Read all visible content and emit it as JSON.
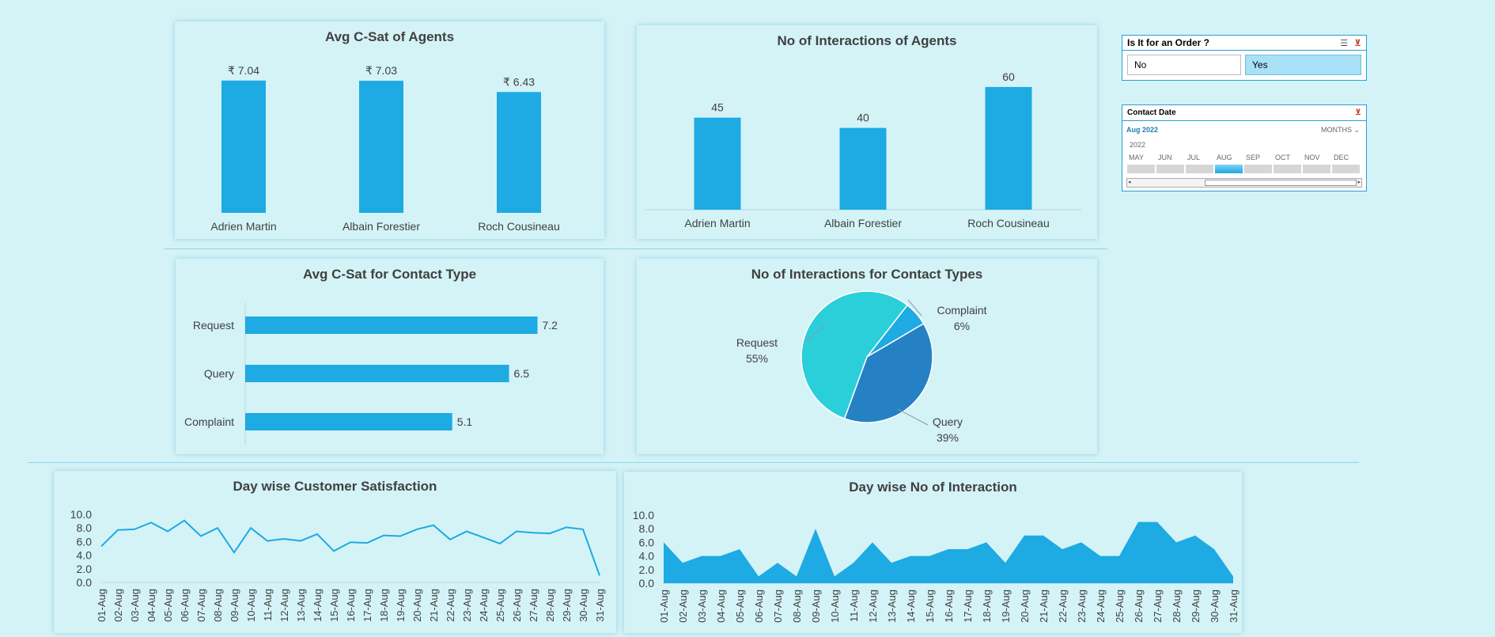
{
  "slicers": {
    "order": {
      "title": "Is It for an Order ?",
      "options": [
        {
          "label": "No",
          "selected": false
        },
        {
          "label": "Yes",
          "selected": true
        }
      ]
    },
    "contact_date": {
      "title": "Contact Date",
      "selection": "Aug 2022",
      "granularity": "MONTHS",
      "year": "2022",
      "months": [
        "MAY",
        "JUN",
        "JUL",
        "AUG",
        "SEP",
        "OCT",
        "NOV",
        "DEC"
      ],
      "selected_month": "AUG"
    }
  },
  "chart_data": [
    {
      "id": "csat-agents",
      "type": "bar",
      "title": "Avg C-Sat of Agents",
      "categories": [
        "Adrien Martin",
        "Albain Forestier",
        "Roch Cousineau"
      ],
      "values": [
        7.04,
        7.03,
        6.43
      ],
      "data_labels": [
        "₹ 7.04",
        "₹ 7.03",
        "₹ 6.43"
      ],
      "ylim": [
        0,
        8
      ],
      "color": "#1eaae2"
    },
    {
      "id": "interactions-agents",
      "type": "bar",
      "title": "No of Interactions of Agents",
      "categories": [
        "Adrien Martin",
        "Albain Forestier",
        "Roch Cousineau"
      ],
      "values": [
        45,
        40,
        60
      ],
      "data_labels": [
        "45",
        "40",
        "60"
      ],
      "ylim": [
        0,
        65
      ],
      "color": "#1eaae2"
    },
    {
      "id": "csat-contact",
      "type": "bar",
      "orientation": "horizontal",
      "title": "Avg C-Sat for Contact Type",
      "categories": [
        "Request",
        "Query",
        "Complaint"
      ],
      "values": [
        7.2,
        6.5,
        5.1
      ],
      "data_labels": [
        "7.2",
        "6.5",
        "5.1"
      ],
      "xlim": [
        0,
        7.6
      ],
      "color": "#1eaae2"
    },
    {
      "id": "interactions-contact",
      "type": "pie",
      "title": "No of Interactions for Contact Types",
      "categories": [
        "Complaint",
        "Query",
        "Request"
      ],
      "values": [
        6,
        39,
        55
      ],
      "data_labels": [
        "6%",
        "39%",
        "55%"
      ],
      "colors": [
        "#1eaae2",
        "#2581c4",
        "#2acfd9"
      ]
    },
    {
      "id": "day-csat",
      "type": "line",
      "title": "Day wise Customer Satisfaction",
      "x": [
        "01-Aug",
        "02-Aug",
        "03-Aug",
        "04-Aug",
        "05-Aug",
        "06-Aug",
        "07-Aug",
        "08-Aug",
        "09-Aug",
        "10-Aug",
        "11-Aug",
        "12-Aug",
        "13-Aug",
        "14-Aug",
        "15-Aug",
        "16-Aug",
        "17-Aug",
        "18-Aug",
        "19-Aug",
        "20-Aug",
        "21-Aug",
        "22-Aug",
        "23-Aug",
        "24-Aug",
        "25-Aug",
        "26-Aug",
        "27-Aug",
        "28-Aug",
        "29-Aug",
        "30-Aug",
        "31-Aug"
      ],
      "values": [
        5.3,
        7.7,
        7.8,
        8.8,
        7.5,
        9.1,
        6.8,
        8.0,
        4.4,
        8.0,
        6.1,
        6.4,
        6.1,
        7.1,
        4.6,
        5.9,
        5.8,
        6.9,
        6.8,
        7.8,
        8.4,
        6.3,
        7.5,
        6.6,
        5.7,
        7.5,
        7.3,
        7.2,
        8.1,
        7.8,
        1.0
      ],
      "yticks": [
        "0.0",
        "2.0",
        "4.0",
        "6.0",
        "8.0",
        "10.0"
      ],
      "ylim": [
        0,
        10
      ],
      "color": "#1eaae2"
    },
    {
      "id": "day-interactions",
      "type": "area",
      "title": "Day wise No of Interaction",
      "x": [
        "01-Aug",
        "02-Aug",
        "03-Aug",
        "04-Aug",
        "05-Aug",
        "06-Aug",
        "07-Aug",
        "08-Aug",
        "09-Aug",
        "10-Aug",
        "11-Aug",
        "12-Aug",
        "13-Aug",
        "14-Aug",
        "15-Aug",
        "16-Aug",
        "17-Aug",
        "18-Aug",
        "19-Aug",
        "20-Aug",
        "21-Aug",
        "22-Aug",
        "23-Aug",
        "24-Aug",
        "25-Aug",
        "26-Aug",
        "27-Aug",
        "28-Aug",
        "29-Aug",
        "30-Aug",
        "31-Aug"
      ],
      "values": [
        6,
        3,
        4,
        4,
        5,
        1,
        3,
        1,
        8,
        1,
        3,
        6,
        3,
        4,
        4,
        5,
        5,
        6,
        3,
        7,
        7,
        5,
        6,
        4,
        4,
        9,
        9,
        6,
        7,
        5,
        1
      ],
      "yticks": [
        "0.0",
        "2.0",
        "4.0",
        "6.0",
        "8.0",
        "10.0"
      ],
      "ylim": [
        0,
        10
      ],
      "color": "#1eaae2"
    }
  ]
}
